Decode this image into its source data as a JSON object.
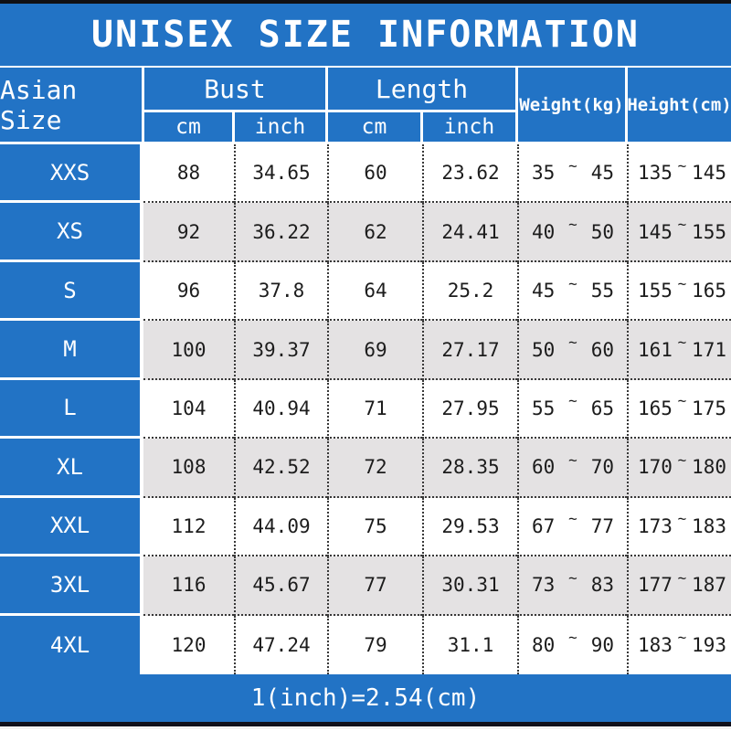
{
  "title": "UNISEX SIZE INFORMATION",
  "symbols": {
    "tilde": "~"
  },
  "colors": {
    "header_blue": "#2273c5",
    "alt_row_gray": "#e4e2e3",
    "grid_dot": "#383838",
    "top_bottom_bar": "#101014",
    "text_on_blue": "#ffffff",
    "data_text": "#1c1c1c"
  },
  "header": {
    "asian_size": "Asian Size",
    "bust": "Bust",
    "length": "Length",
    "weight": "Weight(kg)",
    "height": "Height(cm)",
    "bust_cm": "cm",
    "bust_inch": "inch",
    "length_cm": "cm",
    "length_inch": "inch"
  },
  "rows": [
    {
      "size": "XXS",
      "bust_cm": "88",
      "bust_inch": "34.65",
      "length_cm": "60",
      "length_inch": "23.62",
      "weight_min": "35",
      "weight_max": "45",
      "height_min": "135",
      "height_max": "145"
    },
    {
      "size": "XS",
      "bust_cm": "92",
      "bust_inch": "36.22",
      "length_cm": "62",
      "length_inch": "24.41",
      "weight_min": "40",
      "weight_max": "50",
      "height_min": "145",
      "height_max": "155"
    },
    {
      "size": "S",
      "bust_cm": "96",
      "bust_inch": "37.8",
      "length_cm": "64",
      "length_inch": "25.2",
      "weight_min": "45",
      "weight_max": "55",
      "height_min": "155",
      "height_max": "165"
    },
    {
      "size": "M",
      "bust_cm": "100",
      "bust_inch": "39.37",
      "length_cm": "69",
      "length_inch": "27.17",
      "weight_min": "50",
      "weight_max": "60",
      "height_min": "161",
      "height_max": "171"
    },
    {
      "size": "L",
      "bust_cm": "104",
      "bust_inch": "40.94",
      "length_cm": "71",
      "length_inch": "27.95",
      "weight_min": "55",
      "weight_max": "65",
      "height_min": "165",
      "height_max": "175"
    },
    {
      "size": "XL",
      "bust_cm": "108",
      "bust_inch": "42.52",
      "length_cm": "72",
      "length_inch": "28.35",
      "weight_min": "60",
      "weight_max": "70",
      "height_min": "170",
      "height_max": "180"
    },
    {
      "size": "XXL",
      "bust_cm": "112",
      "bust_inch": "44.09",
      "length_cm": "75",
      "length_inch": "29.53",
      "weight_min": "67",
      "weight_max": "77",
      "height_min": "173",
      "height_max": "183"
    },
    {
      "size": "3XL",
      "bust_cm": "116",
      "bust_inch": "45.67",
      "length_cm": "77",
      "length_inch": "30.31",
      "weight_min": "73",
      "weight_max": "83",
      "height_min": "177",
      "height_max": "187"
    },
    {
      "size": "4XL",
      "bust_cm": "120",
      "bust_inch": "47.24",
      "length_cm": "79",
      "length_inch": "31.1",
      "weight_min": "80",
      "weight_max": "90",
      "height_min": "183",
      "height_max": "193"
    }
  ],
  "footer_note": "1(inch)=2.54(cm)"
}
